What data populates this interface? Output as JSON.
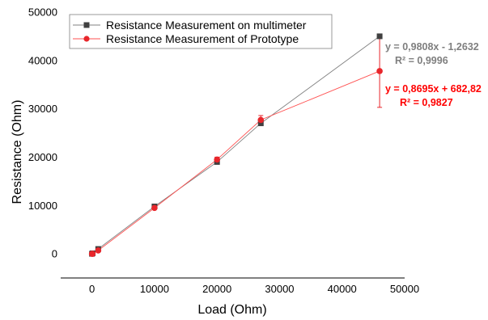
{
  "chart_data": {
    "type": "line",
    "xlabel": "Load (Ohm)",
    "ylabel": "Resistance (Ohm)",
    "xlim": [
      -5000,
      50000
    ],
    "ylim": [
      -5000,
      50000
    ],
    "xticks": [
      "0",
      "10000",
      "20000",
      "30000",
      "40000",
      "50000"
    ],
    "yticks": [
      "0",
      "10000",
      "20000",
      "30000",
      "40000",
      "50000"
    ],
    "grid": false,
    "legend_position": "top-left",
    "series": [
      {
        "name": "Resistance Measurement on multimeter",
        "color": "#404040",
        "line_color": "#808080",
        "marker": "square",
        "points": [
          [
            0,
            0
          ],
          [
            100,
            100
          ],
          [
            1000,
            1000
          ],
          [
            10000,
            9800
          ],
          [
            20000,
            19000
          ],
          [
            27000,
            27000
          ],
          [
            46000,
            45000
          ]
        ]
      },
      {
        "name": "Resistance Measurement of Prototype",
        "color": "#e8262b",
        "line_color": "#ff5050",
        "marker": "circle",
        "points": [
          [
            0,
            0
          ],
          [
            100,
            0
          ],
          [
            1000,
            700
          ],
          [
            10000,
            9500
          ],
          [
            20000,
            19500
          ],
          [
            27000,
            27700
          ],
          [
            46000,
            37800
          ]
        ],
        "error": [
          0,
          0,
          0,
          300,
          500,
          900,
          7500
        ]
      }
    ],
    "annotations": [
      {
        "line1": "y = 0,9808x - 1,2632",
        "line2": "R² = 0,9996",
        "color": "#7f7f7f"
      },
      {
        "line1": "y = 0,8695x + 682,82",
        "line2": "R² = 0,9827",
        "color": "#ff0000"
      }
    ]
  }
}
